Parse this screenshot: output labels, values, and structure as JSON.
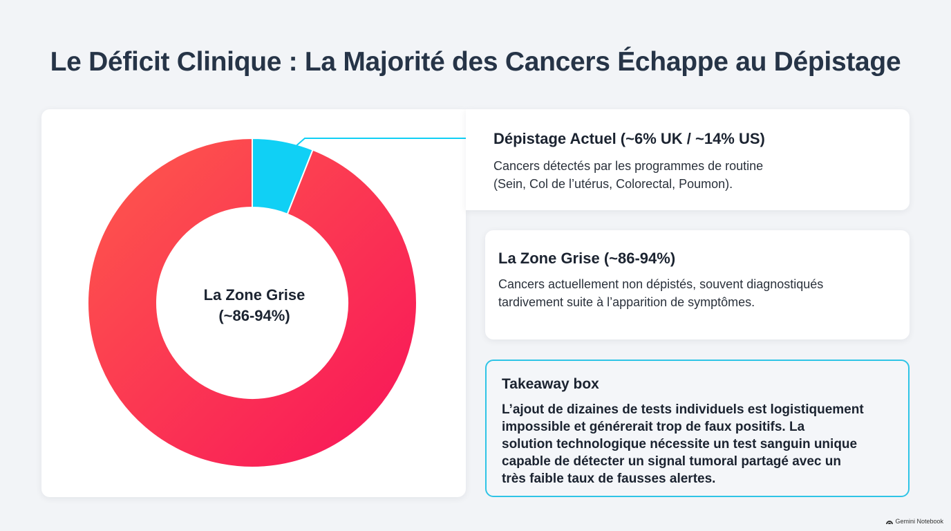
{
  "title": "Le Déficit Clinique : La Majorité des Cancers Échappe au Dépistage",
  "chart_data": {
    "type": "pie",
    "style": "donut",
    "slices": [
      {
        "label": "Dépistage Actuel (~6% UK / ~14% US)",
        "value": 6,
        "color": "#10d0f5"
      },
      {
        "label": "La Zone Grise (~86-94%)",
        "value": 94,
        "color_start": "#fe5a4b",
        "color_end": "#f8135a"
      }
    ],
    "center_label_line1": "La Zone Grise",
    "center_label_line2": "(~86-94%)"
  },
  "cards": {
    "screening": {
      "title": "Dépistage Actuel (~6% UK / ~14% US)",
      "body_line1": "Cancers détectés par les programmes de routine",
      "body_line2": "(Sein, Col de l’utérus, Colorectal, Poumon)."
    },
    "grey_zone": {
      "title": "La Zone Grise (~86-94%)",
      "body_line1": "Cancers actuellement non dépistés, souvent diagnostiqués",
      "body_line2": "tardivement suite à l’apparition de symptômes."
    },
    "takeaway": {
      "title": "Takeaway box",
      "body_lines": [
        "L’ajout de dizaines de tests individuels est logistiquement",
        "impossible et générerait trop de faux positifs. La",
        "solution technologique nécessite un test sanguin unique",
        "capable de détecter un signal tumoral partagé avec un",
        "très faible taux de fausses alertes."
      ]
    }
  },
  "footer": {
    "brand": "Gemini Notebook",
    "brand_icon": "notebook-logo-icon"
  },
  "colors": {
    "accent_cyan": "#10d0f5",
    "takeaway_border": "#2ec4e6",
    "title": "#263447"
  }
}
